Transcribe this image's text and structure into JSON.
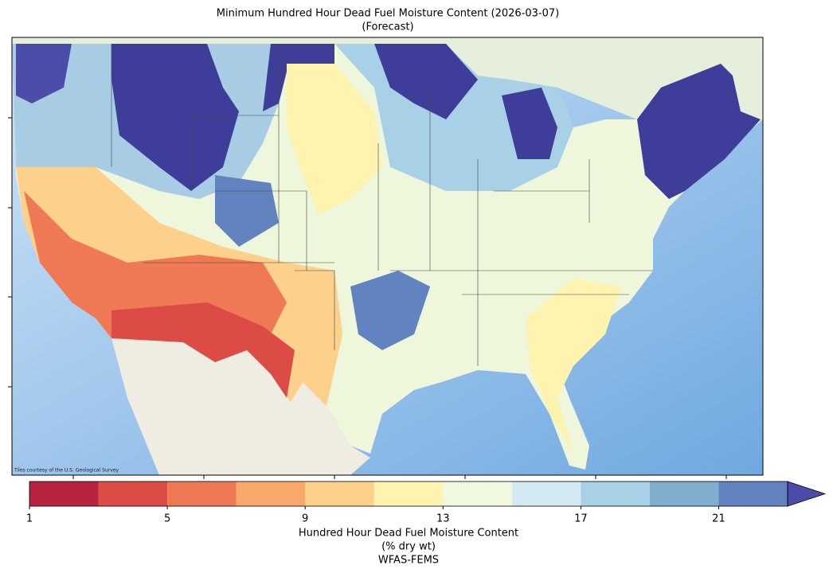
{
  "title": "Minimum Hundred Hour Dead Fuel Moisture Content (2026-03-07)",
  "subtitle": "(Forecast)",
  "attribution": "Tiles courtesy of the U.S. Geological Survey",
  "colorbar": {
    "label_lines": [
      "Hundred Hour Dead Fuel Moisture Content",
      "(% dry wt)",
      "WFAS-FEMS"
    ],
    "lim": [
      1,
      23
    ],
    "ticks": [
      1,
      5,
      9,
      13,
      17,
      21
    ],
    "bins": [
      1,
      3,
      5,
      7,
      9,
      11,
      13,
      15,
      17,
      19,
      21,
      23
    ],
    "colors": [
      "#b82440",
      "#dc4b45",
      "#ef7855",
      "#f7a86a",
      "#fdd08c",
      "#fff3b0",
      "#f1f8e0",
      "#d4eaf2",
      "#a8d0e6",
      "#80aecf",
      "#6283bf"
    ],
    "extend_color": "#4b4ba8"
  }
}
